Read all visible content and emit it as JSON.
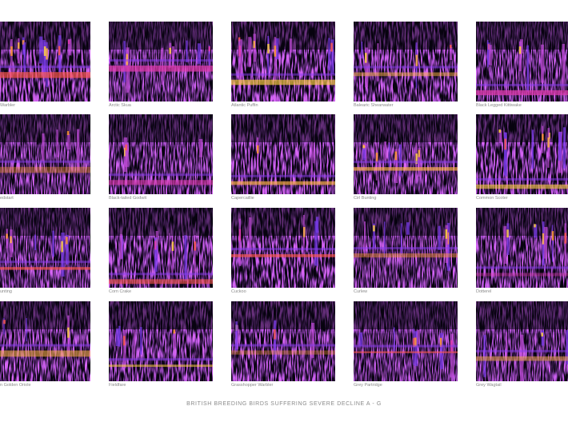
{
  "panels": [
    {
      "label": "Warbler"
    },
    {
      "label": "Arctic Skua"
    },
    {
      "label": "Atlantic Puffin"
    },
    {
      "label": "Balearic Shearwater"
    },
    {
      "label": "Black Legged Kittiwake"
    },
    {
      "label": "edstart"
    },
    {
      "label": "Black-tailed Godwit"
    },
    {
      "label": "Capercaillie"
    },
    {
      "label": "Cirl Bunting"
    },
    {
      "label": "Common Scoter"
    },
    {
      "label": "unting"
    },
    {
      "label": "Corn Crake"
    },
    {
      "label": "Cuckoo"
    },
    {
      "label": "Curlew"
    },
    {
      "label": "Dotterel"
    },
    {
      "label": "n Golden Oriole"
    },
    {
      "label": "Fieldfare"
    },
    {
      "label": "Grasshopper Warbler"
    },
    {
      "label": "Grey Partridge"
    },
    {
      "label": "Grey Wagtail"
    }
  ],
  "footer": "BRITISH BREEDING BIRDS SUFFERING SEVERE DECLINE A - G"
}
